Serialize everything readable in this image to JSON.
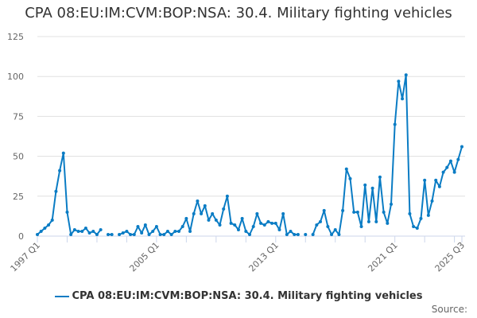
{
  "chart_data": {
    "type": "line",
    "title": "CPA 08:EU:IM:CVM:BOP:NSA: 30.4. Military fighting vehicles",
    "xlabel": "",
    "ylabel": "",
    "x_start": "1997 Q1",
    "x_end": "2025 Q3",
    "x_tick_labels": [
      "1997 Q1",
      "2005 Q1",
      "2013 Q1",
      "2021 Q1",
      "2025 Q3"
    ],
    "x_tick_indices": [
      0,
      32,
      64,
      96,
      114
    ],
    "y_ticks": [
      0,
      25,
      50,
      75,
      100,
      125
    ],
    "ylim": [
      0,
      125
    ],
    "grid": true,
    "legend_position": "bottom",
    "color": "#0a7cc4",
    "series": [
      {
        "name": "CPA 08:EU:IM:CVM:BOP:NSA: 30.4. Military fighting vehicles",
        "values": [
          1,
          3,
          5,
          7,
          10,
          28,
          41,
          52,
          15,
          1,
          4,
          3,
          3,
          5,
          2,
          3,
          1,
          4,
          null,
          1,
          1,
          null,
          1,
          2,
          3,
          1,
          1,
          6,
          2,
          7,
          1,
          3,
          6,
          1,
          1,
          3,
          1,
          3,
          3,
          6,
          11,
          3,
          14,
          22,
          14,
          19,
          10,
          14,
          10,
          7,
          17,
          25,
          8,
          7,
          4,
          11,
          3,
          1,
          6,
          14,
          8,
          7,
          9,
          8,
          8,
          4,
          14,
          1,
          3,
          1,
          1,
          null,
          1,
          null,
          1,
          7,
          9,
          16,
          6,
          1,
          4,
          1,
          16,
          42,
          36,
          15,
          15,
          6,
          32,
          9,
          30,
          9,
          37,
          15,
          8,
          20,
          70,
          97,
          86,
          101,
          14,
          6,
          5,
          11,
          35,
          13,
          22,
          35,
          31,
          40,
          43,
          47,
          40,
          48,
          56
        ]
      }
    ]
  },
  "source_label": "Source:"
}
